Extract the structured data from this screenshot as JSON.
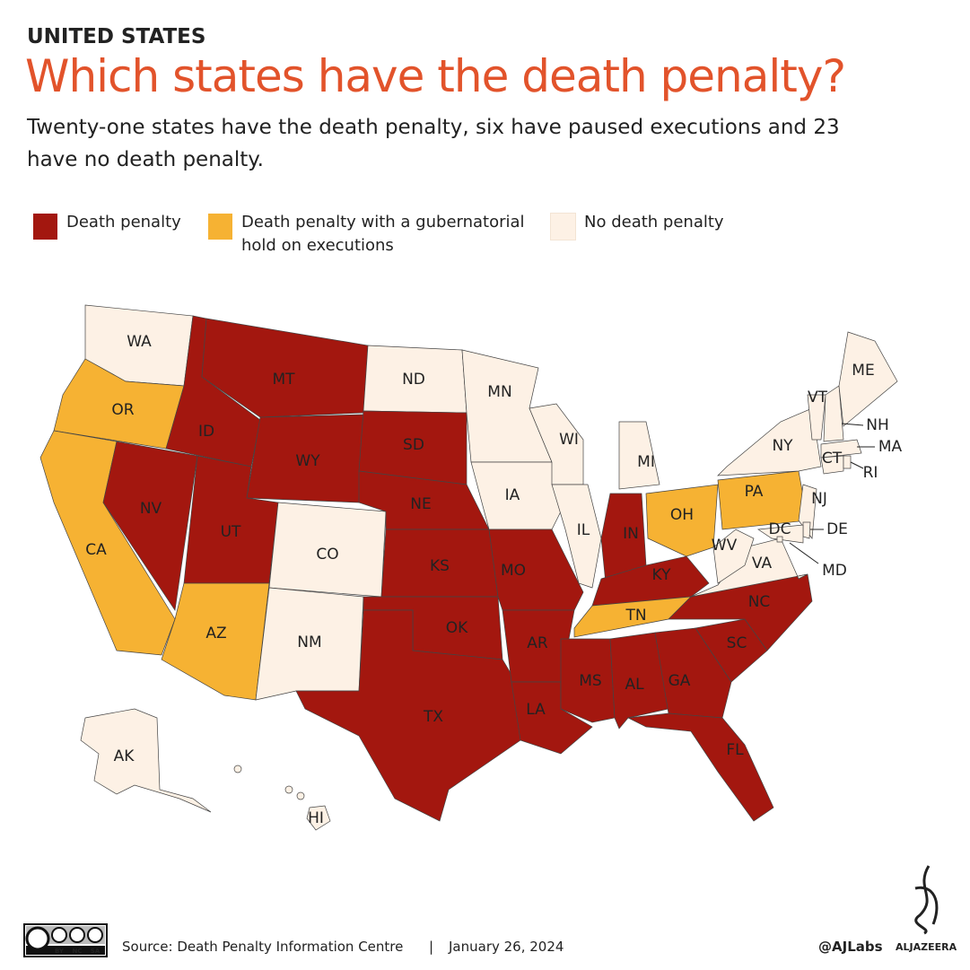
{
  "header": {
    "kicker": "UNITED STATES",
    "title": "Which states have the death penalty?",
    "subtitle": "Twenty-one states have the death penalty, six have paused executions and 23 have no death penalty."
  },
  "legend": [
    {
      "label": "Death penalty",
      "color": "#a3170f"
    },
    {
      "label": "Death penalty with a gubernatorial hold on executions",
      "color": "#f6b233"
    },
    {
      "label": "No death penalty",
      "color": "#fdf1e5"
    }
  ],
  "states": [
    {
      "label": "WA",
      "color": "#fdf1e5"
    },
    {
      "label": "OR",
      "color": "#f6b233"
    },
    {
      "label": "CA",
      "color": "#f6b233"
    },
    {
      "label": "NV",
      "color": "#a3170f"
    },
    {
      "label": "ID",
      "color": "#a3170f"
    },
    {
      "label": "MT",
      "color": "#a3170f"
    },
    {
      "label": "WY",
      "color": "#a3170f"
    },
    {
      "label": "UT",
      "color": "#a3170f"
    },
    {
      "label": "AZ",
      "color": "#f6b233"
    },
    {
      "label": "CO",
      "color": "#fdf1e5"
    },
    {
      "label": "NM",
      "color": "#fdf1e5"
    },
    {
      "label": "ND",
      "color": "#fdf1e5"
    },
    {
      "label": "SD",
      "color": "#a3170f"
    },
    {
      "label": "NE",
      "color": "#a3170f"
    },
    {
      "label": "KS",
      "color": "#a3170f"
    },
    {
      "label": "OK",
      "color": "#a3170f"
    },
    {
      "label": "TX",
      "color": "#a3170f"
    },
    {
      "label": "MN",
      "color": "#fdf1e5"
    },
    {
      "label": "IA",
      "color": "#fdf1e5"
    },
    {
      "label": "MO",
      "color": "#a3170f"
    },
    {
      "label": "AR",
      "color": "#a3170f"
    },
    {
      "label": "LA",
      "color": "#a3170f"
    },
    {
      "label": "WI",
      "color": "#fdf1e5"
    },
    {
      "label": "IL",
      "color": "#fdf1e5"
    },
    {
      "label": "MI",
      "color": "#fdf1e5"
    },
    {
      "label": "IN",
      "color": "#a3170f"
    },
    {
      "label": "OH",
      "color": "#f6b233"
    },
    {
      "label": "KY",
      "color": "#a3170f"
    },
    {
      "label": "TN",
      "color": "#f6b233"
    },
    {
      "label": "MS",
      "color": "#a3170f"
    },
    {
      "label": "AL",
      "color": "#a3170f"
    },
    {
      "label": "GA",
      "color": "#a3170f"
    },
    {
      "label": "FL",
      "color": "#a3170f"
    },
    {
      "label": "SC",
      "color": "#a3170f"
    },
    {
      "label": "NC",
      "color": "#a3170f"
    },
    {
      "label": "VA",
      "color": "#fdf1e5"
    },
    {
      "label": "WV",
      "color": "#fdf1e5"
    },
    {
      "label": "PA",
      "color": "#f6b233"
    },
    {
      "label": "NY",
      "color": "#fdf1e5"
    },
    {
      "label": "NJ",
      "color": "#fdf1e5"
    },
    {
      "label": "DE",
      "color": "#fdf1e5"
    },
    {
      "label": "MD",
      "color": "#fdf1e5"
    },
    {
      "label": "DC",
      "color": "#fdf1e5"
    },
    {
      "label": "VT",
      "color": "#fdf1e5"
    },
    {
      "label": "NH",
      "color": "#fdf1e5"
    },
    {
      "label": "MA",
      "color": "#fdf1e5"
    },
    {
      "label": "CT",
      "color": "#fdf1e5"
    },
    {
      "label": "RI",
      "color": "#fdf1e5"
    },
    {
      "label": "ME",
      "color": "#fdf1e5"
    },
    {
      "label": "AK",
      "color": "#fdf1e5"
    },
    {
      "label": "HI",
      "color": "#fdf1e5"
    }
  ],
  "footer": {
    "license": [
      "BY",
      "NC",
      "SA"
    ],
    "source": "Source: Death Penalty Information Centre",
    "separator": "|",
    "date": "January 26, 2024",
    "handle": "@AJLabs",
    "brand": "ALJAZEERA"
  }
}
